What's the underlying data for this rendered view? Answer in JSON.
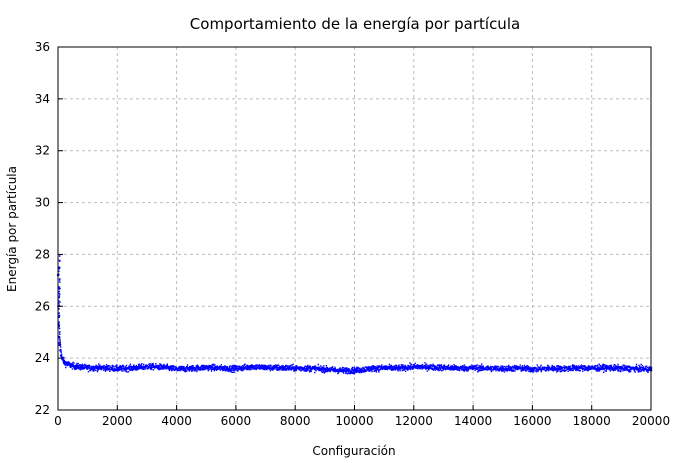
{
  "chart_data": {
    "type": "scatter",
    "title": "Comportamiento de la energía por partícula",
    "xlabel": "Configuración",
    "ylabel": "Energía por partícula",
    "xlim": [
      0,
      20000
    ],
    "ylim": [
      22,
      36
    ],
    "x_ticks": [
      0,
      2000,
      4000,
      6000,
      8000,
      10000,
      12000,
      14000,
      16000,
      18000,
      20000
    ],
    "y_ticks": [
      22,
      24,
      26,
      28,
      30,
      32,
      34,
      36
    ],
    "grid": true,
    "legend": "none",
    "series": [
      {
        "color": "#0000ff",
        "marker": "point",
        "description_equilibrium_mean": 23.65,
        "x": [
          0,
          10,
          20,
          40,
          60,
          80,
          100,
          150,
          200,
          300,
          400,
          600,
          800,
          1000,
          1500,
          2000,
          2500,
          3000,
          3500,
          4000,
          4500,
          5000,
          5500,
          6000,
          6500,
          7000,
          7500,
          8000,
          8500,
          9000,
          9500,
          10000,
          10500,
          11000,
          11500,
          12000,
          12500,
          13000,
          13500,
          14000,
          14500,
          15000,
          15500,
          16000,
          16500,
          17000,
          17500,
          18000,
          18500,
          19000,
          19500,
          20000
        ],
        "y": [
          27.2,
          26.0,
          25.3,
          24.8,
          24.5,
          24.3,
          24.1,
          23.95,
          23.85,
          23.8,
          23.75,
          23.7,
          23.68,
          23.65,
          23.66,
          23.62,
          23.65,
          23.7,
          23.68,
          23.6,
          23.63,
          23.67,
          23.64,
          23.62,
          23.7,
          23.66,
          23.65,
          23.64,
          23.63,
          23.6,
          23.55,
          23.55,
          23.62,
          23.65,
          23.64,
          23.7,
          23.68,
          23.66,
          23.64,
          23.65,
          23.63,
          23.62,
          23.64,
          23.6,
          23.63,
          23.62,
          23.65,
          23.64,
          23.66,
          23.63,
          23.62,
          23.6
        ]
      }
    ]
  }
}
